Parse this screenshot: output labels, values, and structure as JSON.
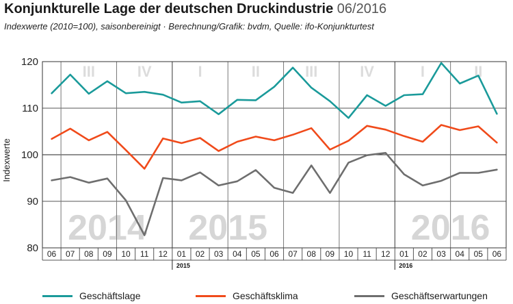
{
  "header": {
    "title": "Konjunkturelle Lage der deutschen Druckindustrie",
    "date": "06/2016",
    "subtitle": "Indexwerte (2010=100), saisonbereinigt  ·  Berechnung/Grafik: bvdm, Quelle: ifo-Konjunkturtest"
  },
  "chart_data": {
    "type": "line",
    "ylabel": "Indexwerte",
    "ylim": [
      80,
      120
    ],
    "yticks": [
      80,
      90,
      100,
      110,
      120
    ],
    "categories": [
      "06",
      "07",
      "08",
      "09",
      "10",
      "11",
      "12",
      "01",
      "02",
      "03",
      "04",
      "05",
      "06",
      "07",
      "08",
      "09",
      "10",
      "11",
      "12",
      "01",
      "02",
      "03",
      "04",
      "05",
      "06"
    ],
    "year_markers": [
      {
        "label": "2015",
        "index": 7
      },
      {
        "label": "2016",
        "index": 19
      }
    ],
    "watermark_years": [
      {
        "label": "2014",
        "from": 0,
        "to": 6
      },
      {
        "label": "2015",
        "from": 7,
        "to": 12
      },
      {
        "label": "2016",
        "from": 19,
        "to": 24
      }
    ],
    "quarters": [
      {
        "label": "III",
        "from": 1,
        "to": 3
      },
      {
        "label": "IV",
        "from": 4,
        "to": 6
      },
      {
        "label": "I",
        "from": 7,
        "to": 9
      },
      {
        "label": "II",
        "from": 10,
        "to": 12
      },
      {
        "label": "III",
        "from": 13,
        "to": 15
      },
      {
        "label": "IV",
        "from": 16,
        "to": 18
      },
      {
        "label": "I",
        "from": 19,
        "to": 21
      },
      {
        "label": "II",
        "from": 22,
        "to": 24
      }
    ],
    "series": [
      {
        "name": "Geschäftslage",
        "color": "#1a9a9a",
        "values": [
          113.2,
          117.2,
          113.1,
          115.8,
          113.2,
          113.5,
          112.9,
          111.2,
          111.5,
          108.7,
          111.8,
          111.7,
          114.6,
          118.7,
          114.4,
          111.5,
          107.9,
          112.8,
          110.5,
          112.8,
          113.0,
          119.7,
          115.3,
          117.0,
          108.8
        ]
      },
      {
        "name": "Geschäftsklima",
        "color": "#f04a1a",
        "values": [
          103.4,
          105.6,
          103.1,
          104.9,
          101.0,
          97.0,
          103.5,
          102.5,
          103.6,
          100.8,
          102.8,
          103.9,
          103.1,
          104.3,
          105.7,
          101.1,
          103.0,
          106.2,
          105.4,
          104.0,
          102.8,
          106.4,
          105.3,
          106.1,
          102.6
        ]
      },
      {
        "name": "Geschäftserwartungen",
        "color": "#6e6e6e",
        "values": [
          94.5,
          95.2,
          94.0,
          94.9,
          90.2,
          82.7,
          95.0,
          94.5,
          96.2,
          93.4,
          94.3,
          96.7,
          92.9,
          91.8,
          97.7,
          91.8,
          98.3,
          99.9,
          100.4,
          95.8,
          93.4,
          94.4,
          96.1,
          96.1,
          96.8
        ]
      }
    ]
  }
}
